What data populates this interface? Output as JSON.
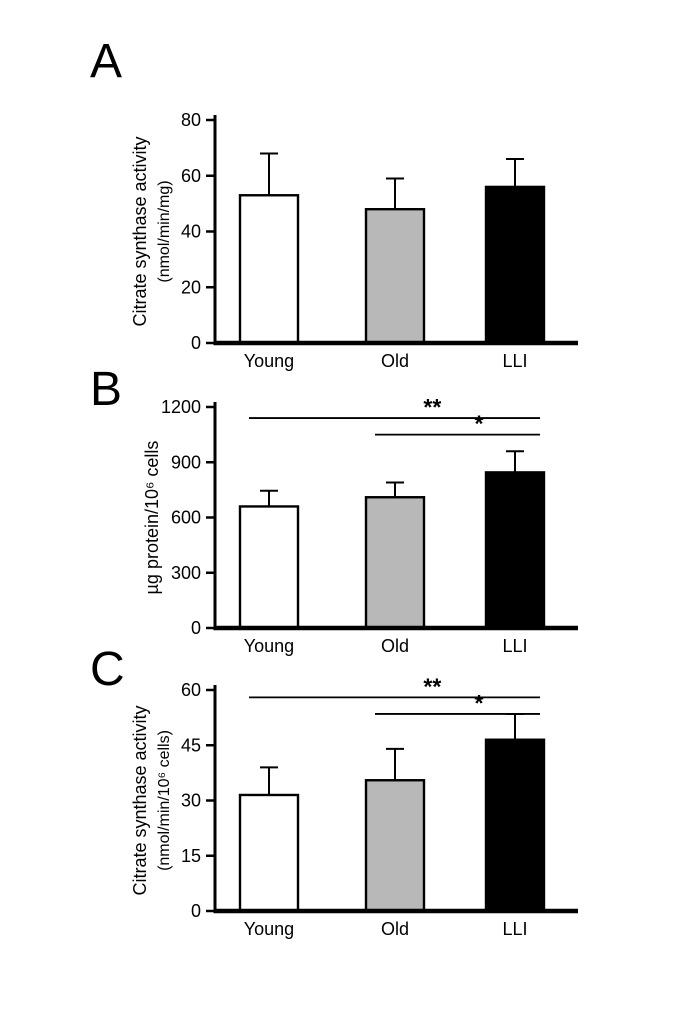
{
  "figure": {
    "background": "#ffffff",
    "panels": [
      {
        "label": "A"
      },
      {
        "label": "B"
      },
      {
        "label": "C"
      }
    ]
  },
  "chart_data": [
    {
      "type": "bar",
      "panel": "A",
      "title": "",
      "xlabel": "",
      "ylabel": "Citrate synthase activity",
      "ylabel_unit": "(nmol/min/mg)",
      "categories": [
        "Young",
        "Old",
        "LLI"
      ],
      "values": [
        53,
        48,
        56
      ],
      "errors_plus": [
        15,
        11,
        10
      ],
      "ylim": [
        0,
        80
      ],
      "yticks": [
        0,
        20,
        40,
        60,
        80
      ],
      "bar_colors": [
        "#ffffff",
        "#b8b8b8",
        "#000000"
      ],
      "bar_edge_color": "#000000",
      "grid": false,
      "legend": false,
      "significance": []
    },
    {
      "type": "bar",
      "panel": "B",
      "title": "",
      "xlabel": "",
      "ylabel": "µg protein/10⁶ cells",
      "ylabel_unit": "",
      "categories": [
        "Young",
        "Old",
        "LLI"
      ],
      "values": [
        660,
        710,
        845
      ],
      "errors_plus": [
        85,
        80,
        115
      ],
      "ylim": [
        0,
        1200
      ],
      "yticks": [
        0,
        300,
        600,
        900,
        1200
      ],
      "bar_colors": [
        "#ffffff",
        "#b8b8b8",
        "#000000"
      ],
      "bar_edge_color": "#000000",
      "grid": false,
      "legend": false,
      "significance": [
        {
          "from": "Young",
          "to": "LLI",
          "label": "**",
          "y": 1140
        },
        {
          "from": "Old",
          "to": "LLI",
          "label": "*",
          "y": 1050
        }
      ]
    },
    {
      "type": "bar",
      "panel": "C",
      "title": "",
      "xlabel": "",
      "ylabel": "Citrate synthase activity",
      "ylabel_unit": "(nmol/min/10⁶ cells)",
      "categories": [
        "Young",
        "Old",
        "LLI"
      ],
      "values": [
        31.5,
        35.5,
        46.5
      ],
      "errors_plus": [
        7.5,
        8.5,
        7
      ],
      "ylim": [
        0,
        60
      ],
      "yticks": [
        0,
        15,
        30,
        45,
        60
      ],
      "bar_colors": [
        "#ffffff",
        "#b8b8b8",
        "#000000"
      ],
      "bar_edge_color": "#000000",
      "grid": false,
      "legend": false,
      "significance": [
        {
          "from": "Young",
          "to": "LLI",
          "label": "**",
          "y": 58
        },
        {
          "from": "Old",
          "to": "LLI",
          "label": "*",
          "y": 53.5
        }
      ]
    }
  ]
}
